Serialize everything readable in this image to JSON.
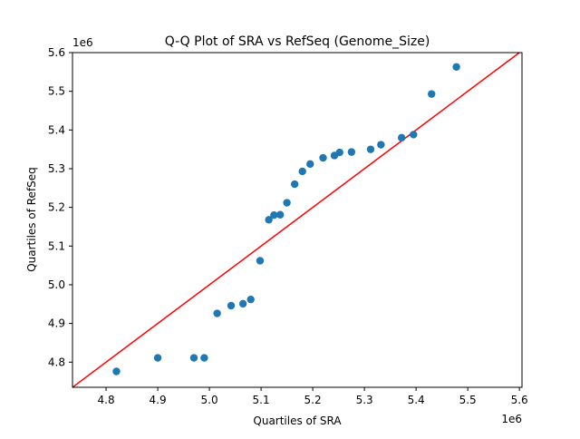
{
  "chart_data": {
    "type": "scatter",
    "title": "Q-Q Plot of SRA vs RefSeq (Genome_Size)",
    "xlabel": "Quartiles of SRA",
    "ylabel": "Quartiles of RefSeq",
    "x_offset_label": "1e6",
    "y_offset_label": "1e6",
    "xlim": [
      4.735,
      5.605
    ],
    "ylim": [
      4.735,
      5.6
    ],
    "xticks": [
      4.8,
      4.9,
      5.0,
      5.1,
      5.2,
      5.3,
      5.4,
      5.5,
      5.6
    ],
    "xtick_labels": [
      "4.8",
      "4.9",
      "5.0",
      "5.1",
      "5.2",
      "5.3",
      "5.4",
      "5.5",
      "5.6"
    ],
    "yticks": [
      4.8,
      4.9,
      5.0,
      5.1,
      5.2,
      5.3,
      5.4,
      5.5,
      5.6
    ],
    "ytick_labels": [
      "4.8",
      "4.9",
      "5.0",
      "5.1",
      "5.2",
      "5.3",
      "5.4",
      "5.5",
      "5.6"
    ],
    "grid": false,
    "series": [
      {
        "kind": "scatter",
        "color": "#1f77b4",
        "points": [
          [
            4.82,
            4.776
          ],
          [
            4.9,
            4.811
          ],
          [
            4.97,
            4.811
          ],
          [
            4.99,
            4.811
          ],
          [
            5.015,
            4.926
          ],
          [
            5.042,
            4.946
          ],
          [
            5.065,
            4.951
          ],
          [
            5.08,
            4.962
          ],
          [
            5.098,
            5.062
          ],
          [
            5.115,
            5.168
          ],
          [
            5.125,
            5.18
          ],
          [
            5.137,
            5.181
          ],
          [
            5.15,
            5.212
          ],
          [
            5.165,
            5.26
          ],
          [
            5.18,
            5.293
          ],
          [
            5.195,
            5.312
          ],
          [
            5.22,
            5.328
          ],
          [
            5.242,
            5.334
          ],
          [
            5.252,
            5.342
          ],
          [
            5.275,
            5.343
          ],
          [
            5.312,
            5.35
          ],
          [
            5.332,
            5.362
          ],
          [
            5.372,
            5.38
          ],
          [
            5.395,
            5.388
          ],
          [
            5.43,
            5.493
          ],
          [
            5.478,
            5.563
          ]
        ]
      },
      {
        "kind": "line",
        "color": "#ff0000",
        "points": [
          [
            4.735,
            4.735
          ],
          [
            5.6,
            5.6
          ]
        ]
      }
    ]
  }
}
